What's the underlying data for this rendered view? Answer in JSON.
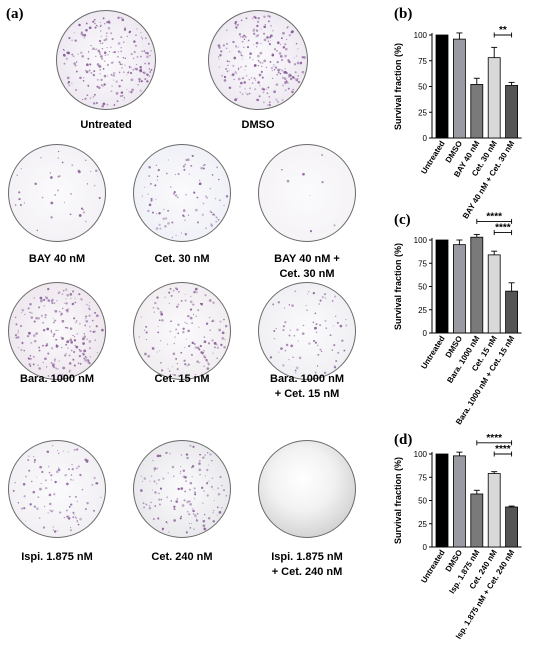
{
  "panels": {
    "a": "(a)",
    "b": "(b)",
    "c": "(c)",
    "d": "(d)"
  },
  "dishes": [
    {
      "label": [
        "Untreated"
      ],
      "density": 0.9,
      "tint": "#ece6f0"
    },
    {
      "label": [
        "DMSO"
      ],
      "density": 0.9,
      "tint": "#ece6f0"
    },
    {
      "label": [
        "BAY 40 nM"
      ],
      "density": 0.15,
      "tint": "#f2f0f4"
    },
    {
      "label": [
        "Cet. 30 nM"
      ],
      "density": 0.35,
      "tint": "#eef0f6"
    },
    {
      "label": [
        "BAY 40 nM +",
        "Cet. 30 nM"
      ],
      "density": 0.03,
      "tint": "#f4f2f4"
    },
    {
      "label": [
        "Bara. 1000 nM"
      ],
      "density": 0.8,
      "tint": "#ece4ec"
    },
    {
      "label": [
        "Cet. 15 nM"
      ],
      "density": 0.55,
      "tint": "#efebee"
    },
    {
      "label": [
        "Bara. 1000 nM",
        "+ Cet. 15 nM"
      ],
      "density": 0.3,
      "tint": "#eeeef2"
    },
    {
      "label": [
        "Ispi.  1.875 nM"
      ],
      "density": 0.4,
      "tint": "#f0eef2"
    },
    {
      "label": [
        "Cet.  240 nM"
      ],
      "density": 0.55,
      "tint": "#e6e6ea"
    },
    {
      "label": [
        "Ispi. 1.875 nM",
        "+ Cet. 240 nM"
      ],
      "density": 0.0,
      "tint": "#d8d8d8"
    }
  ],
  "colors": {
    "bar_black": "#000000",
    "bar_gray": "#9a9aa2",
    "bar_mid": "#7a7a7a",
    "bar_light": "#d9d9d9",
    "bar_dark": "#555555",
    "colony": "#7a4a8a"
  },
  "chart_data": [
    {
      "type": "bar",
      "ylabel": "Survival fraction (%)",
      "ylim": [
        0,
        100
      ],
      "yticks": [
        0,
        25,
        50,
        75,
        100
      ],
      "categories": [
        "Untreated",
        "DMSO",
        "BAY 40 nM",
        "Cet. 30 nM",
        "BAY 40 nM + Cet. 30 nM"
      ],
      "values": [
        100,
        96,
        52,
        78,
        51
      ],
      "errors": [
        0,
        6,
        6,
        10,
        3
      ],
      "significance": [
        {
          "from": 3,
          "to": 4,
          "y": 100,
          "label": "**"
        }
      ]
    },
    {
      "type": "bar",
      "ylabel": "Survival fraction (%)",
      "ylim": [
        0,
        100
      ],
      "yticks": [
        0,
        25,
        50,
        75,
        100
      ],
      "categories": [
        "Untreated",
        "DMSO",
        "Bara. 1000 nM",
        "Cet. 15 nM",
        "Bara. 1000 nM + Cet. 15 nM"
      ],
      "values": [
        100,
        95,
        103,
        84,
        45
      ],
      "errors": [
        0,
        5,
        3,
        4,
        9
      ],
      "significance": [
        {
          "from": 2,
          "to": 4,
          "y": 120,
          "label": "****"
        },
        {
          "from": 3,
          "to": 4,
          "y": 108,
          "label": "****"
        }
      ]
    },
    {
      "type": "bar",
      "ylabel": "Survival fraction (%)",
      "ylim": [
        0,
        100
      ],
      "yticks": [
        0,
        25,
        50,
        75,
        100
      ],
      "categories": [
        "Untreated",
        "DMSO",
        "Isp. 1.875 nM",
        "Cet. 240 nM",
        "Isp. 1.875 nM + Cet. 240 nM"
      ],
      "values": [
        100,
        98,
        57,
        79,
        43
      ],
      "errors": [
        0,
        4,
        4,
        2,
        1
      ],
      "significance": [
        {
          "from": 2,
          "to": 4,
          "y": 112,
          "label": "****"
        },
        {
          "from": 3,
          "to": 4,
          "y": 100,
          "label": "****"
        }
      ]
    }
  ]
}
